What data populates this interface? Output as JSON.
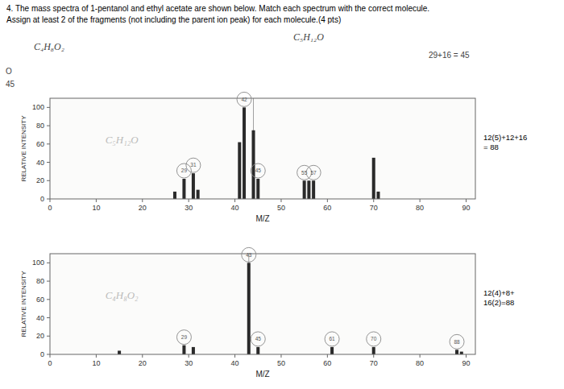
{
  "chart_data": [
    {
      "type": "bar",
      "title": "4. The mass spectra of 1-pentanol and ethyl acetate are shown below. Match each spectrum with the correct molecule.",
      "subtitle": "Assign at least 2 of the fragments (not including the parent ion peak) for each molecule.(4 pts)",
      "header_notes": [
        "C₄H₈O₂",
        "C₅H₁₂O",
        "29+16 = 45",
        "O",
        "45"
      ],
      "x": [
        27,
        29,
        31,
        32,
        41,
        42,
        44,
        45,
        55,
        56,
        57,
        70,
        71
      ],
      "values": [
        8,
        22,
        28,
        10,
        62,
        100,
        75,
        22,
        20,
        20,
        20,
        45,
        8
      ],
      "color": "#2a2a2a",
      "xlim": [
        0,
        92
      ],
      "ylim": [
        0,
        110
      ],
      "xticks": [
        0,
        10,
        20,
        30,
        40,
        50,
        60,
        70,
        80,
        90
      ],
      "yticks": [
        0,
        20,
        40,
        60,
        80,
        100
      ],
      "xlabel": "M/Z",
      "ylabel": "RELATIVE INTENSITY",
      "reference_x": 44,
      "circled": [
        29,
        31,
        42,
        45,
        55,
        57
      ],
      "annotations": [
        "C₅H₁₂O",
        "12(5)+12+16\n= 88"
      ]
    },
    {
      "type": "bar",
      "x": [
        15,
        29,
        31,
        43,
        45,
        61,
        70,
        88,
        89
      ],
      "values": [
        4,
        10,
        8,
        100,
        8,
        8,
        8,
        5,
        3
      ],
      "color": "#2a2a2a",
      "xlim": [
        0,
        92
      ],
      "ylim": [
        0,
        110
      ],
      "xticks": [
        0,
        10,
        20,
        30,
        40,
        50,
        60,
        70,
        80,
        90
      ],
      "yticks": [
        0,
        20,
        40,
        60,
        80,
        100
      ],
      "xlabel": "M/Z",
      "ylabel": "RELATIVE INTENSITY",
      "reference_x": 43,
      "circled": [
        29,
        43,
        45,
        61,
        70,
        88
      ],
      "annotations": [
        "C₄H₈O₂",
        "12(4)+8+\n16(2)=88"
      ]
    }
  ]
}
